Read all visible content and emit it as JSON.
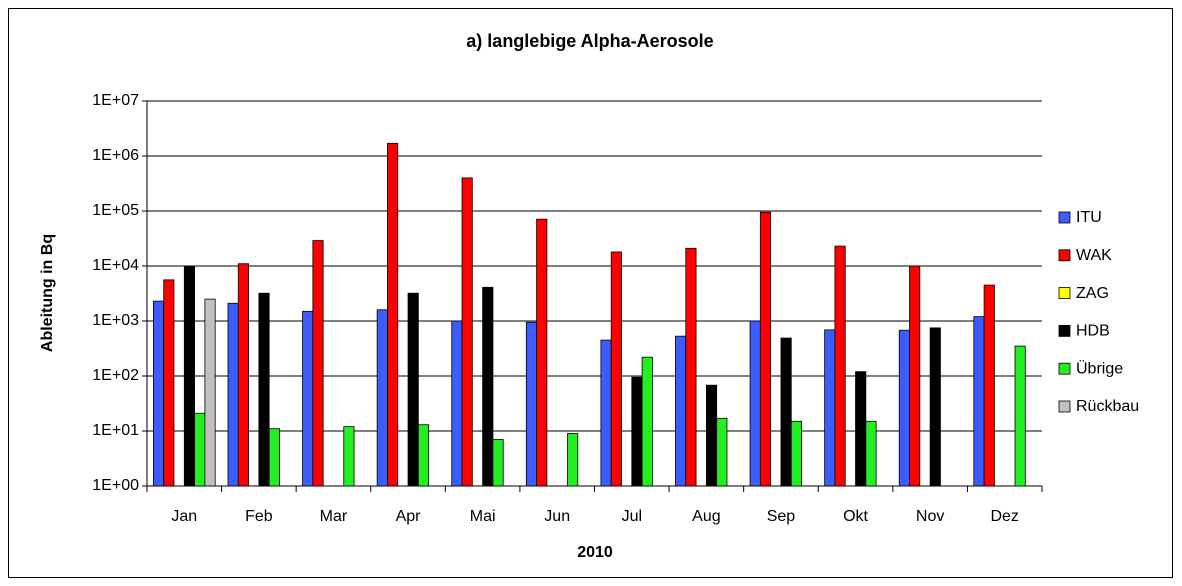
{
  "chart_data": {
    "type": "bar",
    "title": "a) langlebige Alpha-Aerosole",
    "xlabel": "2010",
    "ylabel": "Ableitung in Bq",
    "categories": [
      "Jan",
      "Feb",
      "Mar",
      "Apr",
      "Mai",
      "Jun",
      "Jul",
      "Aug",
      "Sep",
      "Okt",
      "Nov",
      "Dez"
    ],
    "series": [
      {
        "name": "ITU",
        "color": "#3c5cff",
        "values": [
          2300,
          2100,
          1500,
          1600,
          1000,
          950,
          450,
          530,
          1000,
          690,
          680,
          1200
        ]
      },
      {
        "name": "WAK",
        "color": "#ff0000",
        "values": [
          5600,
          11000,
          29000,
          1700000,
          400000,
          71000,
          18000,
          21000,
          95000,
          23000,
          10000,
          4500
        ]
      },
      {
        "name": "ZAG",
        "color": "#ffff00",
        "values": [
          null,
          null,
          null,
          null,
          null,
          null,
          null,
          null,
          null,
          null,
          null,
          null
        ]
      },
      {
        "name": "HDB",
        "color": "#000000",
        "values": [
          10000,
          3200,
          null,
          3200,
          4100,
          null,
          95,
          68,
          490,
          120,
          750,
          null
        ]
      },
      {
        "name": "Übrige",
        "color": "#22ee22",
        "values": [
          21,
          11,
          12,
          13,
          7,
          9,
          220,
          17,
          15,
          15,
          null,
          350
        ]
      },
      {
        "name": "Rückbau",
        "color": "#c0c0c0",
        "values": [
          2500,
          null,
          null,
          null,
          null,
          null,
          null,
          null,
          null,
          null,
          null,
          null
        ]
      }
    ],
    "log_scale": true,
    "grid": true,
    "legend_position": "right",
    "ylim": [
      1,
      10000000
    ],
    "yticks": [
      {
        "value": 1,
        "label": "1E+00"
      },
      {
        "value": 10,
        "label": "1E+01"
      },
      {
        "value": 100,
        "label": "1E+02"
      },
      {
        "value": 1000,
        "label": "1E+03"
      },
      {
        "value": 10000,
        "label": "1E+04"
      },
      {
        "value": 100000,
        "label": "1E+05"
      },
      {
        "value": 1000000,
        "label": "1E+06"
      },
      {
        "value": 10000000,
        "label": "1E+07"
      }
    ]
  }
}
